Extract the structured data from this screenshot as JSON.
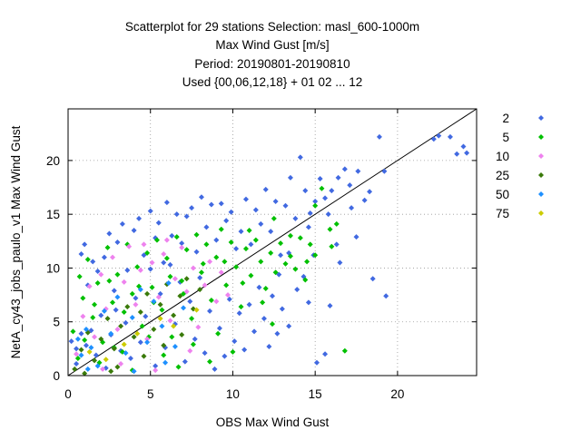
{
  "chart_data": {
    "type": "scatter",
    "title_lines": [
      "Scatterplot for   29 stations Selection: masl_600-1000m",
      "Max Wind Gust [m/s]",
      "Period: 20190801-20190810",
      "Used {00,06,12,18} + 01 02 ... 12"
    ],
    "xlabel": "OBS Max Wind Gust",
    "ylabel": "NetA_cy43_jobs_paulo_v1 Max Wind Gust",
    "xlim": [
      0,
      24.8
    ],
    "ylim": [
      0,
      24.8
    ],
    "xticks": [
      "0",
      "5",
      "10",
      "15",
      "20"
    ],
    "yticks": [
      "0",
      "5",
      "10",
      "15",
      "20"
    ],
    "grid": true,
    "diagonal_line": true,
    "legend_position": "right, outside plot",
    "series": [
      {
        "name": "2",
        "color": "#4169e1",
        "points": [
          [
            0.5,
            2.5
          ],
          [
            0.8,
            11.3
          ],
          [
            1.0,
            12.2
          ],
          [
            1.2,
            8.4
          ],
          [
            1.5,
            10.6
          ],
          [
            1.8,
            9.7
          ],
          [
            2.2,
            11.0
          ],
          [
            2.5,
            13.2
          ],
          [
            2.8,
            7.9
          ],
          [
            3.0,
            12.4
          ],
          [
            3.3,
            14.1
          ],
          [
            3.6,
            9.8
          ],
          [
            4.0,
            13.5
          ],
          [
            4.3,
            14.6
          ],
          [
            4.6,
            11.2
          ],
          [
            5.0,
            15.3
          ],
          [
            5.3,
            12.8
          ],
          [
            5.5,
            14.2
          ],
          [
            5.8,
            10.5
          ],
          [
            6.0,
            16.1
          ],
          [
            6.3,
            13.0
          ],
          [
            6.6,
            15.0
          ],
          [
            6.9,
            12.3
          ],
          [
            7.2,
            14.8
          ],
          [
            7.5,
            15.6
          ],
          [
            7.8,
            11.5
          ],
          [
            8.1,
            16.6
          ],
          [
            8.4,
            13.8
          ],
          [
            8.7,
            15.9
          ],
          [
            9.0,
            12.6
          ],
          [
            9.3,
            16.0
          ],
          [
            9.6,
            14.4
          ],
          [
            9.9,
            15.2
          ],
          [
            10.2,
            11.8
          ],
          [
            10.5,
            13.4
          ],
          [
            10.8,
            16.4
          ],
          [
            11.1,
            12.2
          ],
          [
            11.4,
            15.4
          ],
          [
            11.7,
            14.1
          ],
          [
            12.0,
            17.3
          ],
          [
            12.3,
            13.4
          ],
          [
            12.6,
            16.2
          ],
          [
            12.9,
            11.2
          ],
          [
            13.2,
            15.8
          ],
          [
            13.5,
            18.4
          ],
          [
            13.8,
            14.6
          ],
          [
            14.1,
            20.3
          ],
          [
            14.4,
            17.2
          ],
          [
            14.7,
            15.1
          ],
          [
            15.0,
            16.2
          ],
          [
            15.3,
            18.3
          ],
          [
            15.6,
            16.5
          ],
          [
            16.0,
            17.2
          ],
          [
            16.4,
            18.4
          ],
          [
            16.8,
            19.2
          ],
          [
            17.2,
            15.6
          ],
          [
            17.6,
            19.0
          ],
          [
            18.0,
            16.3
          ],
          [
            18.3,
            17.1
          ],
          [
            18.9,
            22.2
          ],
          [
            19.2,
            19.0
          ],
          [
            22.2,
            22.0
          ],
          [
            22.5,
            22.3
          ],
          [
            23.2,
            22.2
          ],
          [
            23.6,
            20.6
          ],
          [
            24.0,
            21.3
          ],
          [
            24.2,
            20.7
          ],
          [
            19.3,
            7.4
          ],
          [
            18.5,
            9.0
          ],
          [
            16.5,
            10.5
          ],
          [
            15.9,
            6.5
          ],
          [
            15.6,
            2.0
          ],
          [
            15.1,
            1.2
          ],
          [
            14.6,
            6.8
          ],
          [
            14.3,
            9.2
          ],
          [
            13.9,
            8.0
          ],
          [
            13.4,
            4.6
          ],
          [
            13.0,
            6.2
          ],
          [
            12.7,
            3.9
          ],
          [
            12.4,
            7.4
          ],
          [
            12.2,
            2.7
          ],
          [
            11.9,
            5.3
          ],
          [
            11.6,
            8.2
          ],
          [
            11.3,
            4.1
          ],
          [
            11.0,
            6.6
          ],
          [
            10.7,
            2.4
          ],
          [
            10.4,
            5.8
          ],
          [
            10.1,
            3.2
          ],
          [
            9.8,
            7.1
          ],
          [
            9.5,
            1.8
          ],
          [
            9.2,
            4.4
          ],
          [
            8.9,
            0.6
          ],
          [
            8.6,
            6.0
          ],
          [
            8.3,
            2.1
          ],
          [
            8.0,
            9.1
          ],
          [
            7.7,
            3.4
          ],
          [
            7.4,
            6.9
          ],
          [
            7.1,
            1.3
          ],
          [
            6.8,
            8.7
          ],
          [
            6.5,
            4.8
          ],
          [
            6.2,
            10.3
          ],
          [
            5.9,
            2.6
          ],
          [
            5.6,
            7.6
          ],
          [
            5.3,
            0.9
          ],
          [
            5.0,
            9.9
          ],
          [
            4.7,
            5.5
          ],
          [
            4.4,
            3.1
          ],
          [
            4.1,
            7.2
          ],
          [
            3.8,
            1.6
          ],
          [
            3.5,
            4.9
          ],
          [
            3.2,
            2.3
          ],
          [
            2.9,
            6.1
          ],
          [
            2.6,
            3.8
          ],
          [
            2.3,
            0.7
          ],
          [
            2.0,
            5.6
          ],
          [
            1.7,
            1.9
          ],
          [
            1.4,
            4.2
          ],
          [
            1.1,
            2.8
          ],
          [
            0.8,
            3.9
          ],
          [
            0.5,
            1.1
          ],
          [
            0.2,
            3.2
          ],
          [
            13.4,
            11.4
          ],
          [
            12.8,
            9.4
          ],
          [
            14.9,
            11.2
          ],
          [
            16.3,
            12.2
          ],
          [
            17.5,
            12.9
          ],
          [
            17.1,
            17.7
          ],
          [
            15.8,
            15.0
          ],
          [
            14.6,
            13.8
          ]
        ]
      },
      {
        "name": "5",
        "color": "#00c000",
        "points": [
          [
            0.3,
            4.1
          ],
          [
            0.6,
            1.6
          ],
          [
            0.9,
            7.2
          ],
          [
            1.2,
            10.8
          ],
          [
            1.5,
            5.4
          ],
          [
            1.8,
            8.6
          ],
          [
            2.1,
            3.1
          ],
          [
            2.4,
            11.9
          ],
          [
            2.7,
            6.8
          ],
          [
            3.0,
            9.4
          ],
          [
            3.3,
            2.2
          ],
          [
            3.6,
            12.2
          ],
          [
            3.9,
            7.6
          ],
          [
            4.2,
            10.1
          ],
          [
            4.5,
            4.6
          ],
          [
            4.8,
            11.4
          ],
          [
            5.1,
            8.2
          ],
          [
            5.4,
            12.6
          ],
          [
            5.7,
            6.1
          ],
          [
            6.0,
            10.9
          ],
          [
            6.3,
            3.6
          ],
          [
            6.6,
            12.9
          ],
          [
            6.9,
            8.8
          ],
          [
            7.2,
            11.7
          ],
          [
            7.5,
            5.3
          ],
          [
            7.8,
            13.1
          ],
          [
            8.1,
            9.6
          ],
          [
            8.4,
            12.2
          ],
          [
            8.7,
            7.0
          ],
          [
            9.0,
            11.0
          ],
          [
            9.3,
            13.6
          ],
          [
            9.6,
            8.4
          ],
          [
            9.9,
            12.4
          ],
          [
            10.2,
            10.1
          ],
          [
            10.5,
            6.4
          ],
          [
            10.8,
            11.8
          ],
          [
            11.1,
            9.3
          ],
          [
            11.4,
            12.6
          ],
          [
            11.7,
            10.6
          ],
          [
            12.0,
            8.1
          ],
          [
            12.3,
            11.4
          ],
          [
            12.6,
            9.6
          ],
          [
            12.9,
            12.3
          ],
          [
            13.2,
            10.4
          ],
          [
            13.5,
            11.1
          ],
          [
            13.8,
            9.9
          ],
          [
            14.1,
            12.8
          ],
          [
            14.4,
            8.9
          ],
          [
            14.7,
            12.2
          ],
          [
            15.0,
            15.8
          ],
          [
            15.4,
            17.4
          ],
          [
            15.9,
            13.6
          ],
          [
            16.3,
            14.1
          ],
          [
            16.8,
            2.3
          ],
          [
            16.0,
            12.0
          ],
          [
            15.0,
            11.2
          ],
          [
            14.5,
            10.6
          ],
          [
            13.5,
            13.0
          ],
          [
            12.5,
            14.6
          ],
          [
            11.0,
            13.5
          ],
          [
            9.5,
            10.6
          ],
          [
            8.2,
            10.4
          ],
          [
            7.0,
            7.6
          ],
          [
            6.2,
            9.2
          ],
          [
            5.2,
            6.8
          ],
          [
            4.3,
            8.3
          ],
          [
            3.4,
            5.9
          ],
          [
            2.5,
            8.8
          ],
          [
            1.6,
            6.6
          ],
          [
            0.7,
            9.2
          ],
          [
            10.6,
            8.6
          ],
          [
            11.8,
            6.8
          ],
          [
            12.4,
            4.8
          ],
          [
            10.0,
            2.2
          ],
          [
            9.1,
            3.9
          ],
          [
            8.6,
            1.3
          ],
          [
            7.6,
            2.9
          ],
          [
            6.7,
            0.8
          ],
          [
            5.8,
            1.9
          ],
          [
            4.9,
            3.6
          ],
          [
            3.9,
            0.5
          ],
          [
            2.8,
            2.6
          ],
          [
            1.9,
            1.2
          ],
          [
            1.0,
            3.3
          ]
        ]
      },
      {
        "name": "10",
        "color": "#ee82ee",
        "points": [
          [
            0.5,
            2.0
          ],
          [
            0.9,
            5.5
          ],
          [
            1.3,
            8.3
          ],
          [
            1.6,
            3.6
          ],
          [
            2.0,
            9.4
          ],
          [
            2.3,
            6.2
          ],
          [
            2.7,
            11.0
          ],
          [
            3.0,
            4.3
          ],
          [
            3.4,
            8.7
          ],
          [
            3.7,
            12.0
          ],
          [
            4.1,
            6.6
          ],
          [
            4.4,
            9.8
          ],
          [
            4.8,
            3.4
          ],
          [
            5.1,
            10.5
          ],
          [
            5.5,
            7.3
          ],
          [
            5.8,
            11.3
          ],
          [
            6.2,
            5.1
          ],
          [
            6.5,
            9.0
          ],
          [
            6.9,
            11.9
          ],
          [
            7.2,
            7.8
          ],
          [
            7.6,
            10.0
          ],
          [
            7.9,
            4.5
          ],
          [
            8.3,
            8.4
          ],
          [
            8.6,
            10.6
          ],
          [
            9.0,
            6.9
          ],
          [
            9.3,
            9.6
          ],
          [
            9.7,
            7.5
          ],
          [
            4.6,
            12.2
          ],
          [
            6.0,
            12.6
          ],
          [
            3.2,
            1.1
          ],
          [
            2.1,
            0.6
          ],
          [
            7.4,
            2.3
          ],
          [
            5.3,
            0.5
          ]
        ]
      },
      {
        "name": "25",
        "color": "#3a7a0a",
        "points": [
          [
            0.4,
            0.6
          ],
          [
            0.8,
            2.4
          ],
          [
            1.2,
            4.0
          ],
          [
            1.6,
            1.4
          ],
          [
            2.0,
            3.4
          ],
          [
            2.4,
            5.3
          ],
          [
            2.8,
            2.5
          ],
          [
            3.2,
            4.6
          ],
          [
            3.6,
            6.4
          ],
          [
            4.0,
            3.6
          ],
          [
            4.4,
            5.9
          ],
          [
            4.8,
            7.6
          ],
          [
            5.2,
            4.3
          ],
          [
            5.6,
            6.6
          ],
          [
            6.0,
            8.5
          ],
          [
            6.4,
            5.6
          ],
          [
            6.8,
            7.4
          ],
          [
            7.2,
            9.0
          ],
          [
            7.6,
            6.2
          ],
          [
            8.0,
            8.0
          ],
          [
            3.0,
            0.8
          ],
          [
            4.6,
            1.8
          ],
          [
            5.8,
            2.8
          ],
          [
            6.9,
            3.8
          ],
          [
            1.0,
            0.2
          ],
          [
            2.6,
            0.4
          ]
        ]
      },
      {
        "name": "50",
        "color": "#1e90ff",
        "points": [
          [
            0.8,
            1.9
          ],
          [
            1.1,
            4.3
          ],
          [
            1.4,
            2.6
          ],
          [
            1.8,
            0.9
          ],
          [
            2.2,
            6.0
          ],
          [
            2.6,
            3.9
          ],
          [
            3.0,
            7.3
          ],
          [
            3.5,
            2.1
          ],
          [
            3.9,
            5.4
          ],
          [
            4.4,
            8.0
          ],
          [
            4.8,
            3.1
          ],
          [
            5.2,
            6.9
          ],
          [
            5.7,
            4.6
          ],
          [
            6.1,
            8.6
          ],
          [
            6.5,
            2.7
          ],
          [
            7.0,
            6.3
          ],
          [
            1.2,
            0.6
          ],
          [
            0.6,
            3.4
          ],
          [
            5.9,
            1.2
          ],
          [
            4.0,
            0.4
          ]
        ]
      },
      {
        "name": "75",
        "color": "#cccc00",
        "points": [
          [
            2.3,
            1.5
          ],
          [
            4.2,
            3.9
          ],
          [
            5.6,
            5.3
          ],
          [
            6.4,
            4.6
          ],
          [
            3.4,
            2.9
          ],
          [
            7.8,
            6.1
          ],
          [
            1.3,
            2.2
          ]
        ]
      }
    ]
  }
}
